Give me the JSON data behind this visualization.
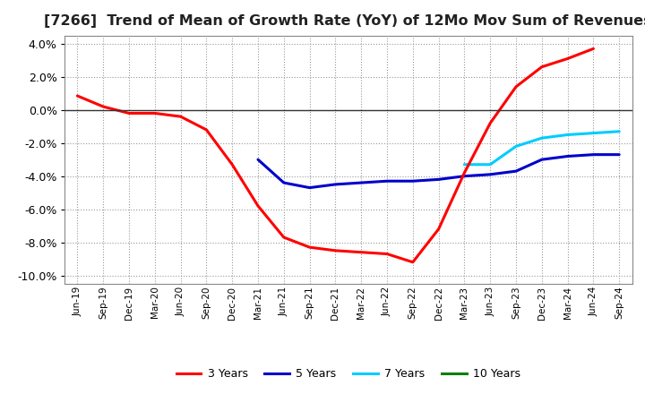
{
  "title": "[7266]  Trend of Mean of Growth Rate (YoY) of 12Mo Mov Sum of Revenues",
  "title_fontsize": 11.5,
  "background_color": "#ffffff",
  "plot_bg_color": "#f5f5f5",
  "grid_color": "#aaaaaa",
  "ylim": [
    -0.105,
    0.045
  ],
  "yticks": [
    -0.1,
    -0.08,
    -0.06,
    -0.04,
    -0.02,
    0.0,
    0.02,
    0.04
  ],
  "x_labels": [
    "Jun-19",
    "Sep-19",
    "Dec-19",
    "Mar-20",
    "Jun-20",
    "Sep-20",
    "Dec-20",
    "Mar-21",
    "Jun-21",
    "Sep-21",
    "Dec-21",
    "Mar-22",
    "Jun-22",
    "Sep-22",
    "Dec-22",
    "Mar-23",
    "Jun-23",
    "Sep-23",
    "Dec-23",
    "Mar-24",
    "Jun-24",
    "Sep-24"
  ],
  "series": {
    "3 Years": {
      "color": "#ff0000",
      "x": [
        0,
        1,
        2,
        3,
        4,
        5,
        6,
        7,
        8,
        9,
        10,
        11,
        12,
        13,
        14,
        15,
        16,
        17,
        18,
        19,
        20
      ],
      "y": [
        0.0085,
        0.002,
        -0.002,
        -0.002,
        -0.004,
        -0.012,
        -0.033,
        -0.058,
        -0.077,
        -0.083,
        -0.085,
        -0.086,
        -0.087,
        -0.092,
        -0.072,
        -0.038,
        -0.008,
        0.014,
        0.026,
        0.031,
        0.037
      ]
    },
    "5 Years": {
      "color": "#0000cc",
      "x": [
        7,
        8,
        9,
        10,
        11,
        12,
        13,
        14,
        15,
        16,
        17,
        18,
        19,
        20,
        21
      ],
      "y": [
        -0.03,
        -0.044,
        -0.047,
        -0.045,
        -0.044,
        -0.043,
        -0.043,
        -0.042,
        -0.04,
        -0.039,
        -0.037,
        -0.03,
        -0.028,
        -0.027,
        -0.027
      ]
    },
    "7 Years": {
      "color": "#00ccff",
      "x": [
        15,
        16,
        17,
        18,
        19,
        20,
        21
      ],
      "y": [
        -0.033,
        -0.033,
        -0.022,
        -0.017,
        -0.015,
        -0.014,
        -0.013
      ]
    },
    "10 Years": {
      "color": "#008000",
      "x": [],
      "y": []
    }
  },
  "legend_labels": [
    "3 Years",
    "5 Years",
    "7 Years",
    "10 Years"
  ],
  "legend_colors": [
    "#ff0000",
    "#0000cc",
    "#00ccff",
    "#008000"
  ]
}
